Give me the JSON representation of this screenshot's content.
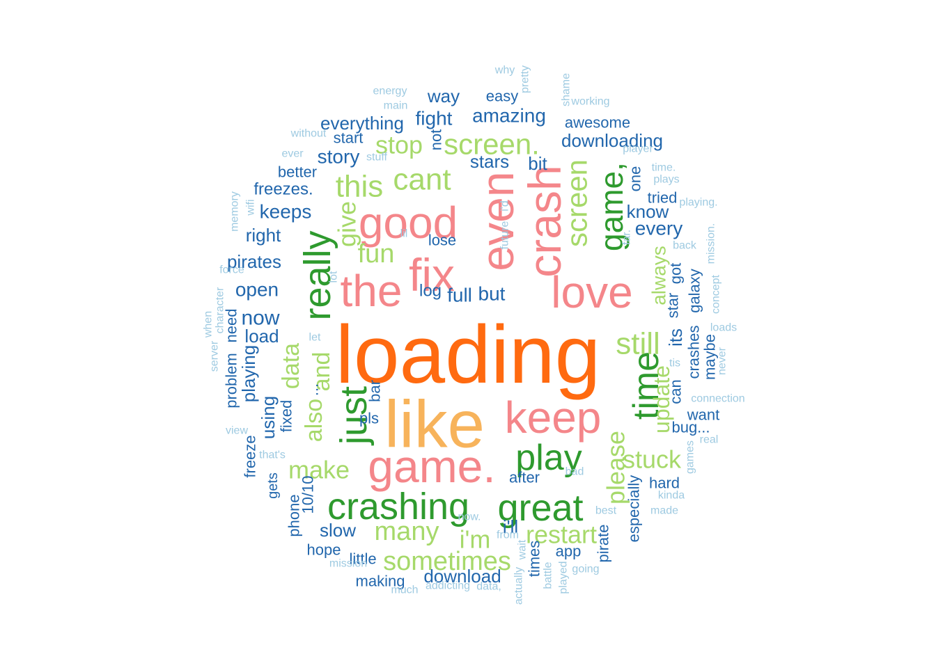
{
  "chart_data": {
    "type": "wordcloud",
    "palette": {
      "pale": "#9ecae1",
      "blue": "#2166ac",
      "lightgreen": "#a6d96a",
      "darkgreen": "#2e9a2e",
      "pink": "#f4868a",
      "lightorange": "#f7b35b",
      "orange": "#ff6a10"
    },
    "words": [
      {
        "text": "loading",
        "freq": 100,
        "color": "orange"
      },
      {
        "text": "like",
        "freq": 70,
        "color": "lightorange"
      },
      {
        "text": "fix",
        "freq": 50,
        "color": "pink"
      },
      {
        "text": "the",
        "freq": 46,
        "color": "pink"
      },
      {
        "text": "good",
        "freq": 47,
        "color": "pink"
      },
      {
        "text": "even",
        "freq": 46,
        "color": "pink"
      },
      {
        "text": "crash",
        "freq": 47,
        "color": "pink"
      },
      {
        "text": "love",
        "freq": 47,
        "color": "pink"
      },
      {
        "text": "keep",
        "freq": 48,
        "color": "pink"
      },
      {
        "text": "game.",
        "freq": 48,
        "color": "pink"
      },
      {
        "text": "crashing",
        "freq": 40,
        "color": "darkgreen"
      },
      {
        "text": "great",
        "freq": 40,
        "color": "darkgreen"
      },
      {
        "text": "play",
        "freq": 39,
        "color": "darkgreen"
      },
      {
        "text": "just",
        "freq": 39,
        "color": "darkgreen"
      },
      {
        "text": "really",
        "freq": 39,
        "color": "darkgreen"
      },
      {
        "text": "time",
        "freq": 39,
        "color": "darkgreen"
      },
      {
        "text": "game,",
        "freq": 35,
        "color": "darkgreen"
      },
      {
        "text": "cant",
        "freq": 32,
        "color": "lightgreen"
      },
      {
        "text": "this",
        "freq": 32,
        "color": "lightgreen"
      },
      {
        "text": "screen.",
        "freq": 32,
        "color": "lightgreen"
      },
      {
        "text": "screen",
        "freq": 32,
        "color": "lightgreen"
      },
      {
        "text": "still",
        "freq": 32,
        "color": "lightgreen"
      },
      {
        "text": "sometimes",
        "freq": 30,
        "color": "lightgreen"
      },
      {
        "text": "many",
        "freq": 30,
        "color": "lightgreen"
      },
      {
        "text": "restart",
        "freq": 28,
        "color": "lightgreen"
      },
      {
        "text": "stuck",
        "freq": 28,
        "color": "lightgreen"
      },
      {
        "text": "make",
        "freq": 28,
        "color": "lightgreen"
      },
      {
        "text": "fun",
        "freq": 29,
        "color": "lightgreen"
      },
      {
        "text": "give",
        "freq": 29,
        "color": "lightgreen"
      },
      {
        "text": "stop",
        "freq": 28,
        "color": "lightgreen"
      },
      {
        "text": "i'm",
        "freq": 28,
        "color": "lightgreen"
      },
      {
        "text": "please",
        "freq": 28,
        "color": "lightgreen"
      },
      {
        "text": "update",
        "freq": 28,
        "color": "lightgreen"
      },
      {
        "text": "always",
        "freq": 26,
        "color": "lightgreen"
      },
      {
        "text": "data",
        "freq": 28,
        "color": "lightgreen"
      },
      {
        "text": "also",
        "freq": 28,
        "color": "lightgreen"
      },
      {
        "text": "and",
        "freq": 28,
        "color": "lightgreen"
      },
      {
        "text": "amazing",
        "freq": 22,
        "color": "blue"
      },
      {
        "text": "fight",
        "freq": 22,
        "color": "blue"
      },
      {
        "text": "everything",
        "freq": 22,
        "color": "blue"
      },
      {
        "text": "way",
        "freq": 20,
        "color": "blue"
      },
      {
        "text": "downloading",
        "freq": 20,
        "color": "blue"
      },
      {
        "text": "story",
        "freq": 22,
        "color": "blue"
      },
      {
        "text": "stars",
        "freq": 20,
        "color": "blue"
      },
      {
        "text": "bit",
        "freq": 20,
        "color": "blue"
      },
      {
        "text": "keeps",
        "freq": 22,
        "color": "blue"
      },
      {
        "text": "freezes.",
        "freq": 20,
        "color": "blue"
      },
      {
        "text": "know",
        "freq": 20,
        "color": "blue"
      },
      {
        "text": "every",
        "freq": 22,
        "color": "blue"
      },
      {
        "text": "right",
        "freq": 20,
        "color": "blue"
      },
      {
        "text": "pirates",
        "freq": 20,
        "color": "blue"
      },
      {
        "text": "open",
        "freq": 22,
        "color": "blue"
      },
      {
        "text": "now",
        "freq": 24,
        "color": "blue"
      },
      {
        "text": "load",
        "freq": 20,
        "color": "blue"
      },
      {
        "text": "log",
        "freq": 20,
        "color": "blue"
      },
      {
        "text": "full",
        "freq": 22,
        "color": "blue"
      },
      {
        "text": "but",
        "freq": 22,
        "color": "blue"
      },
      {
        "text": "download",
        "freq": 20,
        "color": "blue"
      },
      {
        "text": "slow",
        "freq": 20,
        "color": "blue"
      },
      {
        "text": "hard",
        "freq": 18,
        "color": "blue"
      },
      {
        "text": "want",
        "freq": 18,
        "color": "blue"
      },
      {
        "text": "bug...",
        "freq": 18,
        "color": "blue"
      },
      {
        "text": "after",
        "freq": 18,
        "color": "blue"
      },
      {
        "text": "i'll",
        "freq": 20,
        "color": "blue"
      },
      {
        "text": "app",
        "freq": 18,
        "color": "blue"
      },
      {
        "text": "hope",
        "freq": 18,
        "color": "blue"
      },
      {
        "text": "little",
        "freq": 18,
        "color": "blue"
      },
      {
        "text": "making",
        "freq": 18,
        "color": "blue"
      },
      {
        "text": "pls",
        "freq": 18,
        "color": "blue"
      },
      {
        "text": "better",
        "freq": 18,
        "color": "blue"
      },
      {
        "text": "start",
        "freq": 18,
        "color": "blue"
      },
      {
        "text": "easy",
        "freq": 18,
        "color": "blue"
      },
      {
        "text": "awesome",
        "freq": 18,
        "color": "blue"
      },
      {
        "text": "tried",
        "freq": 18,
        "color": "blue"
      },
      {
        "text": "lose",
        "freq": 18,
        "color": "blue"
      },
      {
        "text": "one",
        "freq": 18,
        "color": "blue"
      },
      {
        "text": "not",
        "freq": 18,
        "color": "blue"
      },
      {
        "text": "bar",
        "freq": 18,
        "color": "blue"
      },
      {
        "text": "got",
        "freq": 18,
        "color": "blue"
      },
      {
        "text": "its",
        "freq": 18,
        "color": "blue"
      },
      {
        "text": "star",
        "freq": 18,
        "color": "blue"
      },
      {
        "text": "can",
        "freq": 18,
        "color": "blue"
      },
      {
        "text": "crashes",
        "freq": 18,
        "color": "blue"
      },
      {
        "text": "galaxy",
        "freq": 18,
        "color": "blue"
      },
      {
        "text": "maybe",
        "freq": 18,
        "color": "blue"
      },
      {
        "text": "especially",
        "freq": 18,
        "color": "blue"
      },
      {
        "text": "times",
        "freq": 18,
        "color": "blue"
      },
      {
        "text": "pirate",
        "freq": 18,
        "color": "blue"
      },
      {
        "text": "playing",
        "freq": 20,
        "color": "blue"
      },
      {
        "text": "using",
        "freq": 20,
        "color": "blue"
      },
      {
        "text": "problem",
        "freq": 18,
        "color": "blue"
      },
      {
        "text": "need",
        "freq": 18,
        "color": "blue"
      },
      {
        "text": "fixed",
        "freq": 18,
        "color": "blue"
      },
      {
        "text": "freeze",
        "freq": 18,
        "color": "blue"
      },
      {
        "text": "gets",
        "freq": 18,
        "color": "blue"
      },
      {
        "text": "phone",
        "freq": 18,
        "color": "blue"
      },
      {
        "text": "10/10",
        "freq": 18,
        "color": "blue"
      },
      {
        "text": "...",
        "freq": 18,
        "color": "blue"
      },
      {
        "text": "why",
        "freq": 14,
        "color": "pale"
      },
      {
        "text": "pretty",
        "freq": 14,
        "color": "pale"
      },
      {
        "text": "shame",
        "freq": 14,
        "color": "pale"
      },
      {
        "text": "working",
        "freq": 14,
        "color": "pale"
      },
      {
        "text": "energy",
        "freq": 14,
        "color": "pale"
      },
      {
        "text": "main",
        "freq": 14,
        "color": "pale"
      },
      {
        "text": "without",
        "freq": 14,
        "color": "pale"
      },
      {
        "text": "ever",
        "freq": 14,
        "color": "pale"
      },
      {
        "text": "stuff",
        "freq": 14,
        "color": "pale"
      },
      {
        "text": "player",
        "freq": 14,
        "color": "pale"
      },
      {
        "text": "time.",
        "freq": 14,
        "color": "pale"
      },
      {
        "text": "plays",
        "freq": 14,
        "color": "pale"
      },
      {
        "text": "playing.",
        "freq": 14,
        "color": "pale"
      },
      {
        "text": "memory",
        "freq": 14,
        "color": "pale"
      },
      {
        "text": "wifi",
        "freq": 14,
        "color": "pale"
      },
      {
        "text": "force",
        "freq": 14,
        "color": "pale"
      },
      {
        "text": "lil",
        "freq": 14,
        "color": "pale"
      },
      {
        "text": "i'd",
        "freq": 14,
        "color": "pale"
      },
      {
        "text": "future",
        "freq": 14,
        "color": "pale"
      },
      {
        "text": "far.",
        "freq": 14,
        "color": "pale"
      },
      {
        "text": "back",
        "freq": 14,
        "color": "pale"
      },
      {
        "text": "mission.",
        "freq": 14,
        "color": "pale"
      },
      {
        "text": "concept",
        "freq": 14,
        "color": "pale"
      },
      {
        "text": "lot",
        "freq": 14,
        "color": "pale"
      },
      {
        "text": "character",
        "freq": 14,
        "color": "pale"
      },
      {
        "text": "when",
        "freq": 14,
        "color": "pale"
      },
      {
        "text": "server",
        "freq": 14,
        "color": "pale"
      },
      {
        "text": "let",
        "freq": 14,
        "color": "pale"
      },
      {
        "text": "loads",
        "freq": 14,
        "color": "pale"
      },
      {
        "text": "never",
        "freq": 14,
        "color": "pale"
      },
      {
        "text": "tis",
        "freq": 14,
        "color": "pale"
      },
      {
        "text": "connection",
        "freq": 14,
        "color": "pale"
      },
      {
        "text": "view",
        "freq": 14,
        "color": "pale"
      },
      {
        "text": "that's",
        "freq": 14,
        "color": "pale"
      },
      {
        "text": "real",
        "freq": 14,
        "color": "pale"
      },
      {
        "text": "games",
        "freq": 14,
        "color": "pale"
      },
      {
        "text": "bad",
        "freq": 14,
        "color": "pale"
      },
      {
        "text": "kinda",
        "freq": 14,
        "color": "pale"
      },
      {
        "text": "made",
        "freq": 14,
        "color": "pale"
      },
      {
        "text": "best",
        "freq": 14,
        "color": "pale"
      },
      {
        "text": "now.",
        "freq": 14,
        "color": "pale"
      },
      {
        "text": "from",
        "freq": 14,
        "color": "pale"
      },
      {
        "text": "wait",
        "freq": 14,
        "color": "pale"
      },
      {
        "text": "mission",
        "freq": 14,
        "color": "pale"
      },
      {
        "text": "going",
        "freq": 14,
        "color": "pale"
      },
      {
        "text": "battle",
        "freq": 14,
        "color": "pale"
      },
      {
        "text": "played",
        "freq": 14,
        "color": "pale"
      },
      {
        "text": "actually",
        "freq": 14,
        "color": "pale"
      },
      {
        "text": "addicting",
        "freq": 14,
        "color": "pale"
      },
      {
        "text": "data,",
        "freq": 14,
        "color": "pale"
      },
      {
        "text": "much",
        "freq": 14,
        "color": "pale"
      }
    ]
  }
}
